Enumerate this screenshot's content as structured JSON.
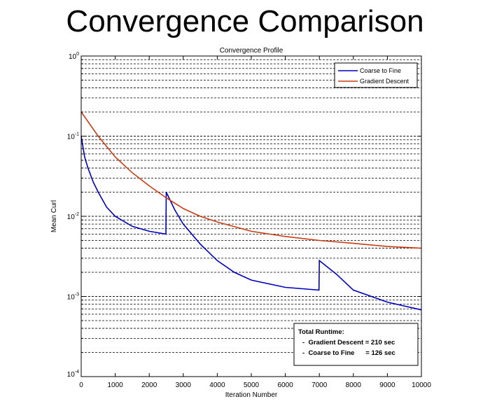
{
  "slide_title": "Convergence Comparison",
  "chart_data": {
    "type": "line",
    "title": "Convergence Profile",
    "xlabel": "Iteration Number",
    "ylabel": "Mean Curl",
    "xlim": [
      0,
      10000
    ],
    "ylim": [
      0.0001,
      1
    ],
    "yscale": "log",
    "grid": "y-minor dashed",
    "xticks": [
      "0",
      "1000",
      "2000",
      "3000",
      "4000",
      "5000",
      "6000",
      "7000",
      "8000",
      "9000",
      "10000"
    ],
    "yticks": [
      {
        "base": "10",
        "exp": "0",
        "v": 1
      },
      {
        "base": "10",
        "exp": "-1",
        "v": 0.1
      },
      {
        "base": "10",
        "exp": "-2",
        "v": 0.01
      },
      {
        "base": "10",
        "exp": "-3",
        "v": 0.001
      },
      {
        "base": "10",
        "exp": "-4",
        "v": 0.0001
      }
    ],
    "legend_position": "top-right",
    "series": [
      {
        "name": "Coarse to Fine",
        "color": "#0000c0",
        "x": [
          0,
          100,
          200,
          350,
          500,
          750,
          1000,
          1500,
          2000,
          2490,
          2500,
          2750,
          3000,
          3500,
          4000,
          4500,
          5000,
          6000,
          6990,
          7000,
          7500,
          8000,
          9000,
          10000
        ],
        "y": [
          0.1,
          0.055,
          0.04,
          0.027,
          0.02,
          0.013,
          0.01,
          0.0075,
          0.0065,
          0.006,
          0.02,
          0.012,
          0.008,
          0.0045,
          0.0028,
          0.002,
          0.0016,
          0.0013,
          0.0012,
          0.0028,
          0.0019,
          0.0012,
          0.00085,
          0.00068
        ]
      },
      {
        "name": "Gradient Descent",
        "color": "#c83c14",
        "x": [
          0,
          500,
          1000,
          1500,
          2000,
          2500,
          3000,
          3500,
          4000,
          5000,
          6000,
          7000,
          8000,
          9000,
          10000
        ],
        "y": [
          0.2,
          0.1,
          0.055,
          0.035,
          0.024,
          0.017,
          0.0125,
          0.01,
          0.0085,
          0.0065,
          0.0056,
          0.005,
          0.0046,
          0.0042,
          0.004
        ]
      }
    ],
    "annotation": {
      "heading": "Total Runtime:",
      "lines": [
        "-  Gradient Descent = 210 sec",
        "-  Coarse to Fine      = 126 sec"
      ]
    }
  }
}
